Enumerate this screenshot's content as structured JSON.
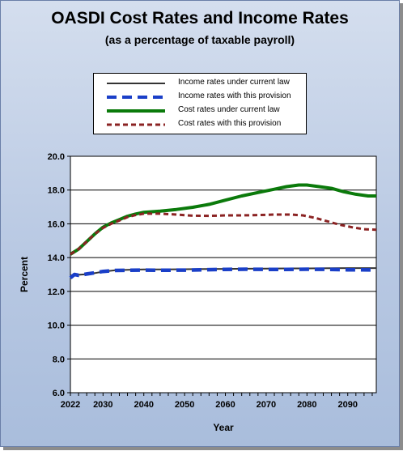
{
  "chart_data": {
    "type": "line",
    "title": "OASDI Cost Rates and Income Rates",
    "subtitle": "(as a percentage of taxable payroll)",
    "xlabel": "Year",
    "ylabel": "Percent",
    "xlim": [
      2022,
      2097
    ],
    "ylim": [
      6.0,
      20.0
    ],
    "x_ticks": [
      2022,
      2030,
      2040,
      2050,
      2060,
      2070,
      2080,
      2090
    ],
    "y_ticks": [
      "6.0",
      "8.0",
      "10.0",
      "12.0",
      "14.0",
      "16.0",
      "18.0",
      "20.0"
    ],
    "grid": "horizontal",
    "legend_position": "top",
    "series": [
      {
        "name": "Income rates under current law",
        "color": "#333333",
        "style": "solid",
        "points": [
          [
            2022,
            12.95
          ],
          [
            2024,
            12.98
          ],
          [
            2026,
            13.02
          ],
          [
            2028,
            13.08
          ],
          [
            2030,
            13.17
          ],
          [
            2033,
            13.25
          ],
          [
            2036,
            13.28
          ],
          [
            2040,
            13.3
          ],
          [
            2045,
            13.3
          ],
          [
            2050,
            13.31
          ],
          [
            2055,
            13.32
          ],
          [
            2060,
            13.33
          ],
          [
            2065,
            13.34
          ],
          [
            2070,
            13.35
          ],
          [
            2075,
            13.36
          ],
          [
            2080,
            13.36
          ],
          [
            2085,
            13.37
          ],
          [
            2090,
            13.38
          ],
          [
            2097,
            13.38
          ]
        ]
      },
      {
        "name": "Income rates with this provision",
        "color": "#1a3fc8",
        "style": "dashed",
        "points": [
          [
            2022,
            12.8
          ],
          [
            2023,
            13.0
          ],
          [
            2024,
            12.95
          ],
          [
            2026,
            13.03
          ],
          [
            2028,
            13.1
          ],
          [
            2030,
            13.18
          ],
          [
            2033,
            13.24
          ],
          [
            2036,
            13.25
          ],
          [
            2040,
            13.26
          ],
          [
            2045,
            13.25
          ],
          [
            2050,
            13.26
          ],
          [
            2055,
            13.28
          ],
          [
            2060,
            13.3
          ],
          [
            2065,
            13.31
          ],
          [
            2070,
            13.3
          ],
          [
            2075,
            13.3
          ],
          [
            2080,
            13.31
          ],
          [
            2085,
            13.3
          ],
          [
            2090,
            13.28
          ],
          [
            2097,
            13.27
          ]
        ]
      },
      {
        "name": "Cost rates under current law",
        "color": "#0b7a0b",
        "style": "solid",
        "points": [
          [
            2022,
            14.2
          ],
          [
            2024,
            14.5
          ],
          [
            2026,
            14.95
          ],
          [
            2028,
            15.4
          ],
          [
            2030,
            15.8
          ],
          [
            2032,
            16.05
          ],
          [
            2034,
            16.25
          ],
          [
            2036,
            16.45
          ],
          [
            2038,
            16.58
          ],
          [
            2040,
            16.68
          ],
          [
            2044,
            16.75
          ],
          [
            2048,
            16.85
          ],
          [
            2052,
            16.98
          ],
          [
            2056,
            17.15
          ],
          [
            2060,
            17.4
          ],
          [
            2064,
            17.65
          ],
          [
            2068,
            17.85
          ],
          [
            2072,
            18.05
          ],
          [
            2075,
            18.2
          ],
          [
            2078,
            18.3
          ],
          [
            2080,
            18.3
          ],
          [
            2083,
            18.2
          ],
          [
            2086,
            18.1
          ],
          [
            2089,
            17.9
          ],
          [
            2092,
            17.75
          ],
          [
            2095,
            17.65
          ],
          [
            2097,
            17.65
          ]
        ]
      },
      {
        "name": "Cost rates with this provision",
        "color": "#8b2323",
        "style": "dashed",
        "points": [
          [
            2022,
            14.2
          ],
          [
            2024,
            14.5
          ],
          [
            2026,
            14.95
          ],
          [
            2028,
            15.4
          ],
          [
            2030,
            15.75
          ],
          [
            2032,
            16.0
          ],
          [
            2034,
            16.2
          ],
          [
            2036,
            16.4
          ],
          [
            2038,
            16.52
          ],
          [
            2040,
            16.6
          ],
          [
            2044,
            16.6
          ],
          [
            2048,
            16.55
          ],
          [
            2052,
            16.48
          ],
          [
            2056,
            16.47
          ],
          [
            2060,
            16.5
          ],
          [
            2064,
            16.5
          ],
          [
            2068,
            16.52
          ],
          [
            2072,
            16.55
          ],
          [
            2076,
            16.55
          ],
          [
            2079,
            16.5
          ],
          [
            2082,
            16.35
          ],
          [
            2085,
            16.15
          ],
          [
            2088,
            15.95
          ],
          [
            2091,
            15.8
          ],
          [
            2094,
            15.68
          ],
          [
            2097,
            15.65
          ]
        ]
      }
    ]
  }
}
